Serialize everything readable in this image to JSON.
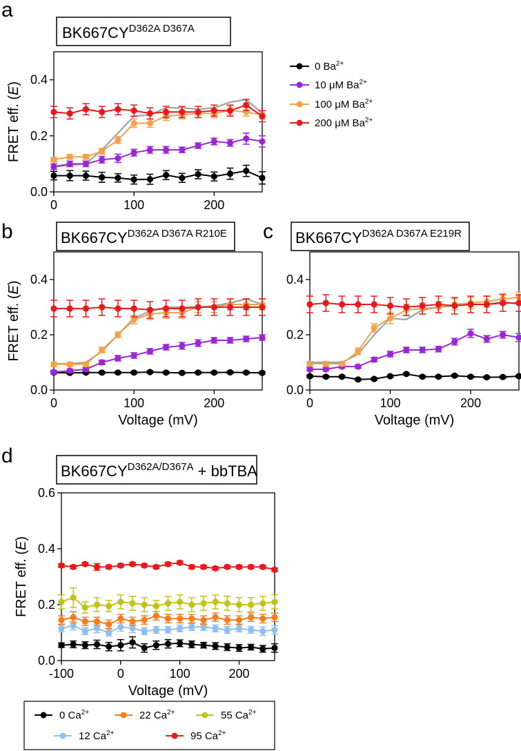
{
  "figure": {
    "panels": [
      "a",
      "b",
      "c",
      "d"
    ],
    "ba_legend": {
      "items": [
        {
          "label": "0 Ba",
          "sup": "2+",
          "color": "#000000"
        },
        {
          "label": "10 μM Ba",
          "sup": "2+",
          "color": "#9b27d3"
        },
        {
          "label": "100 μM Ba",
          "sup": "2+",
          "color": "#f4a14b"
        },
        {
          "label": "200 μM Ba",
          "sup": "2+",
          "color": "#e8191d"
        }
      ]
    },
    "ca_legend": {
      "items": [
        {
          "label": "0 Ca",
          "sup": "2+",
          "color": "#000000"
        },
        {
          "label": "22 Ca",
          "sup": "2+",
          "color": "#f57c1f"
        },
        {
          "label": "55 Ca",
          "sup": "2+",
          "color": "#c2c31a"
        },
        {
          "label": "12 Ca",
          "sup": "2+",
          "color": "#8fbfee"
        },
        {
          "label": "95 Ca",
          "sup": "2+",
          "color": "#e8191d"
        }
      ]
    }
  },
  "chart_data": [
    {
      "panel": "a",
      "type": "line",
      "title": "BK667CY",
      "title_sup": "D362A D367A",
      "ylabel": "FRET eff. (E)",
      "xlabel": "",
      "xlim": [
        0,
        260
      ],
      "ylim": [
        0,
        0.5
      ],
      "xticks": [
        "0",
        "100",
        "200"
      ],
      "yticks": [
        "0.0",
        "0.2",
        "0.4"
      ],
      "x": [
        0,
        20,
        40,
        60,
        80,
        100,
        120,
        140,
        160,
        180,
        200,
        220,
        240,
        260
      ],
      "series": [
        {
          "name": "0 Ba2+",
          "color": "#000000",
          "values": [
            0.058,
            0.058,
            0.058,
            0.052,
            0.05,
            0.044,
            0.045,
            0.06,
            0.05,
            0.063,
            0.055,
            0.065,
            0.075,
            0.05
          ],
          "err": [
            0.015,
            0.018,
            0.016,
            0.018,
            0.015,
            0.016,
            0.018,
            0.016,
            0.016,
            0.016,
            0.016,
            0.02,
            0.02,
            0.022
          ]
        },
        {
          "name": "10 μM Ba2+",
          "color": "#9b27d3",
          "values": [
            0.09,
            0.1,
            0.1,
            0.115,
            0.12,
            0.14,
            0.15,
            0.15,
            0.15,
            0.165,
            0.18,
            0.175,
            0.19,
            0.18
          ],
          "err": [
            0.01,
            0.01,
            0.01,
            0.012,
            0.015,
            0.012,
            0.012,
            0.012,
            0.01,
            0.01,
            0.012,
            0.012,
            0.02,
            0.02
          ]
        },
        {
          "name": "100 μM Ba2+",
          "color": "#f4a14b",
          "values": [
            0.115,
            0.125,
            0.125,
            0.145,
            0.185,
            0.245,
            0.245,
            0.27,
            0.275,
            0.28,
            0.28,
            0.29,
            0.285,
            0.275
          ],
          "err": [
            0.008,
            0.008,
            0.008,
            0.01,
            0.012,
            0.015,
            0.015,
            0.015,
            0.015,
            0.015,
            0.015,
            0.015,
            0.015,
            0.015
          ]
        },
        {
          "name": "200 μM Ba2+",
          "color": "#e8191d",
          "values": [
            0.285,
            0.28,
            0.295,
            0.285,
            0.295,
            0.29,
            0.28,
            0.285,
            0.285,
            0.285,
            0.29,
            0.29,
            0.31,
            0.27
          ],
          "err": [
            0.02,
            0.02,
            0.02,
            0.02,
            0.02,
            0.02,
            0.02,
            0.02,
            0.02,
            0.02,
            0.02,
            0.02,
            0.02,
            0.02
          ]
        }
      ],
      "fit": {
        "color": "#a0a0a0",
        "values": [
          0.09,
          0.095,
          0.1,
          0.15,
          0.21,
          0.27,
          0.275,
          0.3,
          0.3,
          0.295,
          0.3,
          0.32,
          0.33,
          0.28
        ]
      }
    },
    {
      "panel": "b",
      "type": "line",
      "title": "BK667CY",
      "title_sup": "D362A D367A R210E",
      "ylabel": "FRET eff. (E)",
      "xlabel": "Voltage (mV)",
      "xlim": [
        0,
        260
      ],
      "ylim": [
        0,
        0.5
      ],
      "xticks": [
        "0",
        "100",
        "200"
      ],
      "yticks": [
        "0.0",
        "0.2",
        "0.4"
      ],
      "x": [
        0,
        20,
        40,
        60,
        80,
        100,
        120,
        140,
        160,
        180,
        200,
        220,
        240,
        260
      ],
      "series": [
        {
          "name": "0 Ba2+",
          "color": "#000000",
          "values": [
            0.063,
            0.062,
            0.063,
            0.063,
            0.063,
            0.063,
            0.065,
            0.063,
            0.062,
            0.063,
            0.063,
            0.064,
            0.063,
            0.062
          ],
          "err": [
            0.004,
            0.004,
            0.004,
            0.004,
            0.004,
            0.004,
            0.004,
            0.004,
            0.004,
            0.004,
            0.004,
            0.004,
            0.004,
            0.004
          ]
        },
        {
          "name": "10 μM Ba2+",
          "color": "#9b27d3",
          "values": [
            0.065,
            0.07,
            0.075,
            0.1,
            0.115,
            0.125,
            0.14,
            0.155,
            0.16,
            0.17,
            0.18,
            0.18,
            0.185,
            0.19
          ],
          "err": [
            0.006,
            0.006,
            0.006,
            0.008,
            0.01,
            0.01,
            0.01,
            0.01,
            0.012,
            0.012,
            0.01,
            0.01,
            0.01,
            0.01
          ]
        },
        {
          "name": "100 μM Ba2+",
          "color": "#f4a14b",
          "values": [
            0.093,
            0.093,
            0.093,
            0.145,
            0.2,
            0.255,
            0.275,
            0.28,
            0.28,
            0.3,
            0.3,
            0.31,
            0.31,
            0.31
          ],
          "err": [
            0.008,
            0.008,
            0.008,
            0.01,
            0.01,
            0.015,
            0.02,
            0.02,
            0.02,
            0.02,
            0.02,
            0.02,
            0.02,
            0.02
          ]
        },
        {
          "name": "200 μM Ba2+",
          "color": "#e8191d",
          "values": [
            0.295,
            0.295,
            0.295,
            0.3,
            0.295,
            0.295,
            0.29,
            0.295,
            0.295,
            0.3,
            0.3,
            0.3,
            0.3,
            0.3
          ],
          "err": [
            0.03,
            0.03,
            0.03,
            0.03,
            0.03,
            0.03,
            0.03,
            0.03,
            0.03,
            0.03,
            0.03,
            0.03,
            0.03,
            0.03
          ]
        }
      ],
      "fit": {
        "color": "#a0a0a0",
        "values": [
          0.095,
          0.095,
          0.1,
          0.14,
          0.2,
          0.26,
          0.285,
          0.3,
          0.3,
          0.3,
          0.305,
          0.315,
          0.33,
          0.31
        ]
      }
    },
    {
      "panel": "c",
      "type": "line",
      "title": "BK667CY",
      "title_sup": "D362A D367A E219R",
      "ylabel": "",
      "xlabel": "Voltage (mV)",
      "xlim": [
        0,
        260
      ],
      "ylim": [
        0,
        0.5
      ],
      "xticks": [
        "0",
        "100",
        "200"
      ],
      "yticks": [
        "0.0",
        "0.2",
        "0.4"
      ],
      "x": [
        0,
        20,
        40,
        60,
        80,
        100,
        120,
        140,
        160,
        180,
        200,
        220,
        240,
        260
      ],
      "series": [
        {
          "name": "0 Ba2+",
          "color": "#000000",
          "values": [
            0.05,
            0.048,
            0.048,
            0.038,
            0.04,
            0.05,
            0.058,
            0.048,
            0.048,
            0.052,
            0.048,
            0.046,
            0.047,
            0.05
          ],
          "err": [
            0.004,
            0.004,
            0.004,
            0.004,
            0.004,
            0.004,
            0.004,
            0.004,
            0.004,
            0.004,
            0.004,
            0.004,
            0.004,
            0.004
          ]
        },
        {
          "name": "10 μM Ba2+",
          "color": "#9b27d3",
          "values": [
            0.075,
            0.075,
            0.085,
            0.085,
            0.11,
            0.13,
            0.145,
            0.145,
            0.148,
            0.175,
            0.205,
            0.185,
            0.2,
            0.19
          ],
          "err": [
            0.006,
            0.006,
            0.006,
            0.006,
            0.008,
            0.01,
            0.01,
            0.01,
            0.01,
            0.012,
            0.015,
            0.012,
            0.012,
            0.015
          ]
        },
        {
          "name": "100 μM Ba2+",
          "color": "#f4a14b",
          "values": [
            0.095,
            0.095,
            0.095,
            0.14,
            0.225,
            0.26,
            0.29,
            0.295,
            0.3,
            0.31,
            0.315,
            0.32,
            0.33,
            0.335
          ],
          "err": [
            0.008,
            0.008,
            0.008,
            0.012,
            0.015,
            0.02,
            0.02,
            0.02,
            0.02,
            0.02,
            0.02,
            0.02,
            0.02,
            0.02
          ]
        },
        {
          "name": "200 μM Ba2+",
          "color": "#e8191d",
          "values": [
            0.31,
            0.315,
            0.31,
            0.31,
            0.31,
            0.305,
            0.3,
            0.305,
            0.31,
            0.305,
            0.31,
            0.31,
            0.315,
            0.315
          ],
          "err": [
            0.03,
            0.03,
            0.03,
            0.03,
            0.03,
            0.03,
            0.03,
            0.03,
            0.03,
            0.03,
            0.03,
            0.03,
            0.03,
            0.03
          ]
        }
      ],
      "fit": {
        "color": "#a0a0a0",
        "values": [
          0.1,
          0.1,
          0.1,
          0.13,
          0.2,
          0.26,
          0.255,
          0.29,
          0.3,
          0.305,
          0.31,
          0.31,
          0.32,
          0.31
        ]
      }
    },
    {
      "panel": "d",
      "type": "line",
      "title": "BK667CY",
      "title_sup": "D362A/D367A",
      "title_suffix": " + bbTBA",
      "ylabel": "FRET eff. (E)",
      "xlabel": "Voltage (mV)",
      "xlim": [
        -100,
        260
      ],
      "ylim": [
        0,
        0.6
      ],
      "xticks": [
        "-100",
        "0",
        "100",
        "200"
      ],
      "yticks": [
        "0.0",
        "0.2",
        "0.4",
        "0.6"
      ],
      "x": [
        -100,
        -80,
        -60,
        -40,
        -20,
        0,
        20,
        40,
        60,
        80,
        100,
        120,
        140,
        160,
        180,
        200,
        220,
        240,
        260
      ],
      "series": [
        {
          "name": "0 Ca2+",
          "color": "#000000",
          "values": [
            0.055,
            0.058,
            0.055,
            0.058,
            0.05,
            0.055,
            0.065,
            0.045,
            0.055,
            0.06,
            0.062,
            0.058,
            0.055,
            0.052,
            0.048,
            0.045,
            0.048,
            0.042,
            0.045
          ],
          "err": [
            0.008,
            0.012,
            0.012,
            0.015,
            0.015,
            0.02,
            0.02,
            0.015,
            0.015,
            0.015,
            0.012,
            0.012,
            0.01,
            0.012,
            0.012,
            0.012,
            0.01,
            0.012,
            0.015
          ]
        },
        {
          "name": "12 Ca2+",
          "color": "#8fbfee",
          "values": [
            0.115,
            0.125,
            0.105,
            0.115,
            0.1,
            0.12,
            0.115,
            0.105,
            0.11,
            0.11,
            0.115,
            0.12,
            0.12,
            0.115,
            0.11,
            0.115,
            0.11,
            0.105,
            0.11
          ],
          "err": [
            0.012,
            0.015,
            0.012,
            0.015,
            0.012,
            0.015,
            0.015,
            0.012,
            0.012,
            0.012,
            0.012,
            0.012,
            0.012,
            0.012,
            0.012,
            0.012,
            0.012,
            0.015,
            0.015
          ]
        },
        {
          "name": "22 Ca2+",
          "color": "#f57c1f",
          "values": [
            0.145,
            0.155,
            0.14,
            0.14,
            0.13,
            0.15,
            0.14,
            0.145,
            0.16,
            0.15,
            0.15,
            0.15,
            0.145,
            0.155,
            0.145,
            0.145,
            0.155,
            0.15,
            0.155
          ],
          "err": [
            0.015,
            0.02,
            0.015,
            0.015,
            0.015,
            0.015,
            0.015,
            0.015,
            0.015,
            0.015,
            0.015,
            0.015,
            0.015,
            0.015,
            0.015,
            0.015,
            0.015,
            0.015,
            0.015
          ]
        },
        {
          "name": "55 Ca2+",
          "color": "#c2c31a",
          "values": [
            0.21,
            0.225,
            0.19,
            0.2,
            0.195,
            0.21,
            0.205,
            0.2,
            0.195,
            0.205,
            0.21,
            0.2,
            0.205,
            0.21,
            0.205,
            0.2,
            0.2,
            0.205,
            0.21
          ],
          "err": [
            0.025,
            0.035,
            0.02,
            0.025,
            0.02,
            0.025,
            0.025,
            0.025,
            0.02,
            0.025,
            0.025,
            0.025,
            0.025,
            0.025,
            0.025,
            0.025,
            0.025,
            0.025,
            0.025
          ]
        },
        {
          "name": "95 Ca2+",
          "color": "#e8191d",
          "values": [
            0.34,
            0.335,
            0.345,
            0.335,
            0.335,
            0.34,
            0.345,
            0.34,
            0.335,
            0.345,
            0.35,
            0.335,
            0.335,
            0.33,
            0.335,
            0.335,
            0.335,
            0.335,
            0.325
          ],
          "err": [
            0.006,
            0.006,
            0.006,
            0.012,
            0.006,
            0.006,
            0.006,
            0.006,
            0.006,
            0.006,
            0.006,
            0.006,
            0.006,
            0.006,
            0.006,
            0.006,
            0.006,
            0.006,
            0.006
          ]
        }
      ]
    }
  ]
}
